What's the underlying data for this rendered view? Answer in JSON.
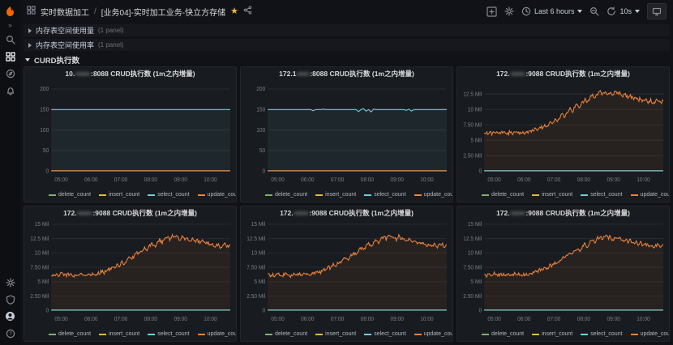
{
  "navbar": {
    "breadcrumb": {
      "folder": "实时数据加工",
      "separator": "/",
      "title": "[业务04]-实时加工业务-快立方存储"
    },
    "favorite": "★",
    "time_range": "Last 6 hours",
    "refresh_interval": "10s"
  },
  "sidebar": {
    "items": [
      "grafana-logo",
      "expand-menu",
      "search",
      "dashboards",
      "explore",
      "alerting"
    ],
    "bottom_items": [
      "settings",
      "security",
      "profile",
      "help"
    ]
  },
  "rows": [
    {
      "title": "内存表空间使用量",
      "meta": "(1 panel)"
    },
    {
      "title": "内存表空间使用率",
      "meta": "(1 panel)"
    },
    {
      "title": "CURD执行数",
      "meta": ""
    }
  ],
  "legend_series": [
    "delete_count",
    "insert_count",
    "select_count",
    "update_count"
  ],
  "colors": {
    "delete": "#7EB26D",
    "insert": "#EAB839",
    "select": "#6ED0E0",
    "update": "#EF843C"
  },
  "series_defs": {
    "crud": [
      6.2,
      6.1,
      6.3,
      6.0,
      6.4,
      6.2,
      6.1,
      6.3,
      6.2,
      6.0,
      6.3,
      6.1,
      6.4,
      6.2,
      6.3,
      6.1,
      6.2,
      6.4,
      6.3,
      6.5,
      6.8,
      6.6,
      7.2,
      7.0,
      7.6,
      7.3,
      8.0,
      7.7,
      8.4,
      8.1,
      8.8,
      9.2,
      8.9,
      9.6,
      10.1,
      9.7,
      10.5,
      10.9,
      10.4,
      11.2,
      11.6,
      11.0,
      11.9,
      12.3,
      11.8,
      12.6,
      12.9,
      12.4,
      13.0,
      12.6,
      12.8,
      12.2,
      12.9,
      12.5,
      12.7,
      12.1,
      12.4,
      11.9,
      12.2,
      11.7,
      12.0,
      11.5,
      11.8,
      11.3,
      11.6,
      11.2,
      11.5,
      11.0,
      11.3,
      11.6,
      11.1,
      11.4
    ],
    "p2_select": [
      150,
      150,
      150,
      150,
      150,
      150,
      150,
      150,
      150,
      150,
      150,
      150,
      150,
      150,
      150,
      150,
      150,
      150,
      147,
      150,
      150,
      150,
      151,
      150,
      150,
      150,
      150,
      150,
      150,
      150,
      150,
      150,
      150,
      150,
      150,
      150,
      145,
      150,
      152,
      146,
      150,
      144,
      151,
      150,
      150,
      150,
      150,
      150,
      150,
      150,
      150,
      150,
      150,
      150,
      150,
      148,
      151,
      146,
      150,
      150,
      150,
      150,
      150,
      150,
      150,
      150,
      150,
      150,
      150,
      150,
      150,
      150
    ]
  },
  "chart_data": [
    {
      "type": "line",
      "title_prefix": "10.",
      "title_masked": "••••••",
      "title_suffix": ":8088 CRUD执行数 (1m之内增量)",
      "ylim": [
        0,
        210
      ],
      "yticks": [
        {
          "v": 0,
          "label": "0"
        },
        {
          "v": 50,
          "label": "50"
        },
        {
          "v": 100,
          "label": "100"
        },
        {
          "v": 150,
          "label": "150"
        },
        {
          "v": 200,
          "label": "200"
        }
      ],
      "x_start": "04:40",
      "x_end": "10:40",
      "xticks": [
        "05:00",
        "06:00",
        "07:00",
        "08:00",
        "09:00",
        "10:00"
      ],
      "series": [
        {
          "name": "delete_count",
          "color": "#7EB26D",
          "const": 1
        },
        {
          "name": "insert_count",
          "color": "#EAB839",
          "const": 1
        },
        {
          "name": "select_count",
          "color": "#6ED0E0",
          "const": 150,
          "fill": true
        },
        {
          "name": "update_count",
          "color": "#EF843C",
          "const": 1
        }
      ]
    },
    {
      "type": "line",
      "title_prefix": "172.1",
      "title_masked": "•••••",
      "title_suffix": ":8088 CRUD执行数 (1m之内增量)",
      "ylim": [
        0,
        210
      ],
      "yticks": [
        {
          "v": 0,
          "label": "0"
        },
        {
          "v": 50,
          "label": "50"
        },
        {
          "v": 100,
          "label": "100"
        },
        {
          "v": 150,
          "label": "150"
        },
        {
          "v": 200,
          "label": "200"
        }
      ],
      "x_start": "04:40",
      "x_end": "10:40",
      "xticks": [
        "05:00",
        "06:00",
        "07:00",
        "08:00",
        "09:00",
        "10:00"
      ],
      "series": [
        {
          "name": "delete_count",
          "color": "#7EB26D",
          "const": 1
        },
        {
          "name": "insert_count",
          "color": "#EAB839",
          "const": 1
        },
        {
          "name": "select_count",
          "color": "#6ED0E0",
          "ref": "p2_select",
          "fill": true
        },
        {
          "name": "update_count",
          "color": "#EF843C",
          "const": 1
        }
      ]
    },
    {
      "type": "line",
      "title_prefix": "172.",
      "title_masked": "••••••",
      "title_suffix": ":9088 CRUD执行数 (1m之内增量)",
      "ylim": [
        0,
        14
      ],
      "yticks": [
        {
          "v": 0,
          "label": "0"
        },
        {
          "v": 2.5,
          "label": "2.50 Mil"
        },
        {
          "v": 5,
          "label": "5 Mil"
        },
        {
          "v": 7.5,
          "label": "7.50 Mil"
        },
        {
          "v": 10,
          "label": "10 Mil"
        },
        {
          "v": 12.5,
          "label": "12.5 Mil"
        }
      ],
      "x_start": "04:40",
      "x_end": "10:40",
      "xticks": [
        "05:00",
        "06:00",
        "07:00",
        "08:00",
        "09:00",
        "10:00"
      ],
      "series": [
        {
          "name": "delete_count",
          "color": "#7EB26D",
          "const": 0.05
        },
        {
          "name": "insert_count",
          "color": "#EAB839",
          "const": 0.05
        },
        {
          "name": "select_count",
          "color": "#6ED0E0",
          "const": 0.05
        },
        {
          "name": "update_count",
          "color": "#EF843C",
          "ref": "crud",
          "jitter": 0.3,
          "fill": true
        }
      ]
    },
    {
      "type": "line",
      "title_prefix": "172.",
      "title_masked": "••••••",
      "title_suffix": ":9088 CRUD执行数 (1m之内增量)",
      "ylim": [
        0,
        15
      ],
      "yticks": [
        {
          "v": 0,
          "label": "0"
        },
        {
          "v": 2.5,
          "label": "2.50 Mil"
        },
        {
          "v": 5,
          "label": "5 Mil"
        },
        {
          "v": 7.5,
          "label": "7.50 Mil"
        },
        {
          "v": 10,
          "label": "10 Mil"
        },
        {
          "v": 12.5,
          "label": "12.5 Mil"
        },
        {
          "v": 15,
          "label": "15 Mil"
        }
      ],
      "x_start": "04:40",
      "x_end": "10:40",
      "xticks": [
        "05:00",
        "06:00",
        "07:00",
        "08:00",
        "09:00",
        "10:00"
      ],
      "series": [
        {
          "name": "delete_count",
          "color": "#7EB26D",
          "const": 0.05
        },
        {
          "name": "insert_count",
          "color": "#EAB839",
          "const": 0.05
        },
        {
          "name": "select_count",
          "color": "#6ED0E0",
          "const": 0.05
        },
        {
          "name": "update_count",
          "color": "#EF843C",
          "ref": "crud",
          "jitter": 0.3,
          "fill": true
        }
      ]
    },
    {
      "type": "line",
      "title_prefix": "172.",
      "title_masked": "••••••",
      "title_suffix": ":9088 CRUD执行数 (1m之内增量)",
      "ylim": [
        0,
        15
      ],
      "yticks": [
        {
          "v": 0,
          "label": "0"
        },
        {
          "v": 2.5,
          "label": "2.50 Mil"
        },
        {
          "v": 5,
          "label": "5 Mil"
        },
        {
          "v": 7.5,
          "label": "7.50 Mil"
        },
        {
          "v": 10,
          "label": "10 Mil"
        },
        {
          "v": 12.5,
          "label": "12.5 Mil"
        },
        {
          "v": 15,
          "label": "15 Mil"
        }
      ],
      "x_start": "04:40",
      "x_end": "10:40",
      "xticks": [
        "05:00",
        "06:00",
        "07:00",
        "08:00",
        "09:00",
        "10:00"
      ],
      "series": [
        {
          "name": "delete_count",
          "color": "#7EB26D",
          "const": 0.05
        },
        {
          "name": "insert_count",
          "color": "#EAB839",
          "const": 0.05
        },
        {
          "name": "select_count",
          "color": "#6ED0E0",
          "const": 0.05
        },
        {
          "name": "update_count",
          "color": "#EF843C",
          "ref": "crud",
          "jitter": 0.3,
          "fill": true
        }
      ]
    },
    {
      "type": "line",
      "title_prefix": "172.",
      "title_masked": "••••••",
      "title_suffix": ":9088 CRUD执行数 (1m之内增量)",
      "ylim": [
        0,
        15
      ],
      "yticks": [
        {
          "v": 0,
          "label": "0"
        },
        {
          "v": 2.5,
          "label": "2.50 Mil"
        },
        {
          "v": 5,
          "label": "5 Mil"
        },
        {
          "v": 7.5,
          "label": "7.50 Mil"
        },
        {
          "v": 10,
          "label": "10 Mil"
        },
        {
          "v": 12.5,
          "label": "12.5 Mil"
        },
        {
          "v": 15,
          "label": "15 Mil"
        }
      ],
      "x_start": "04:40",
      "x_end": "10:40",
      "xticks": [
        "05:00",
        "06:00",
        "07:00",
        "08:00",
        "09:00",
        "10:00"
      ],
      "series": [
        {
          "name": "delete_count",
          "color": "#7EB26D",
          "const": 0.05
        },
        {
          "name": "insert_count",
          "color": "#EAB839",
          "const": 0.05
        },
        {
          "name": "select_count",
          "color": "#6ED0E0",
          "const": 0.05
        },
        {
          "name": "update_count",
          "color": "#EF843C",
          "ref": "crud",
          "jitter": 0.3,
          "fill": true
        }
      ]
    }
  ]
}
